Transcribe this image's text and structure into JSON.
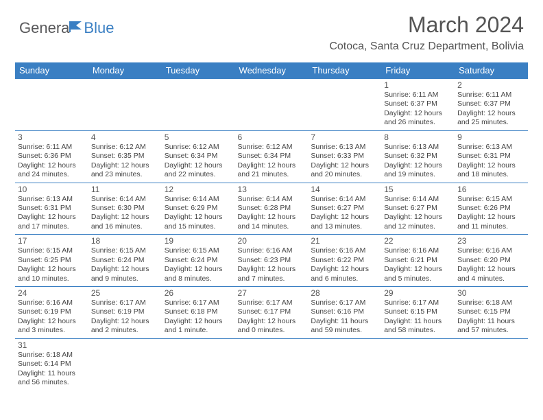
{
  "logo": {
    "general": "Genera",
    "blue": "Blue"
  },
  "header": {
    "title": "March 2024",
    "location": "Cotoca, Santa Cruz Department, Bolivia"
  },
  "colors": {
    "header_bg": "#3a7fc3",
    "header_text": "#ffffff",
    "border": "#3a7fc3",
    "text": "#444444",
    "title": "#555555"
  },
  "weekdays": [
    "Sunday",
    "Monday",
    "Tuesday",
    "Wednesday",
    "Thursday",
    "Friday",
    "Saturday"
  ],
  "weeks": [
    [
      null,
      null,
      null,
      null,
      null,
      {
        "day": "1",
        "sunrise": "Sunrise: 6:11 AM",
        "sunset": "Sunset: 6:37 PM",
        "daylight": "Daylight: 12 hours and 26 minutes."
      },
      {
        "day": "2",
        "sunrise": "Sunrise: 6:11 AM",
        "sunset": "Sunset: 6:37 PM",
        "daylight": "Daylight: 12 hours and 25 minutes."
      }
    ],
    [
      {
        "day": "3",
        "sunrise": "Sunrise: 6:11 AM",
        "sunset": "Sunset: 6:36 PM",
        "daylight": "Daylight: 12 hours and 24 minutes."
      },
      {
        "day": "4",
        "sunrise": "Sunrise: 6:12 AM",
        "sunset": "Sunset: 6:35 PM",
        "daylight": "Daylight: 12 hours and 23 minutes."
      },
      {
        "day": "5",
        "sunrise": "Sunrise: 6:12 AM",
        "sunset": "Sunset: 6:34 PM",
        "daylight": "Daylight: 12 hours and 22 minutes."
      },
      {
        "day": "6",
        "sunrise": "Sunrise: 6:12 AM",
        "sunset": "Sunset: 6:34 PM",
        "daylight": "Daylight: 12 hours and 21 minutes."
      },
      {
        "day": "7",
        "sunrise": "Sunrise: 6:13 AM",
        "sunset": "Sunset: 6:33 PM",
        "daylight": "Daylight: 12 hours and 20 minutes."
      },
      {
        "day": "8",
        "sunrise": "Sunrise: 6:13 AM",
        "sunset": "Sunset: 6:32 PM",
        "daylight": "Daylight: 12 hours and 19 minutes."
      },
      {
        "day": "9",
        "sunrise": "Sunrise: 6:13 AM",
        "sunset": "Sunset: 6:31 PM",
        "daylight": "Daylight: 12 hours and 18 minutes."
      }
    ],
    [
      {
        "day": "10",
        "sunrise": "Sunrise: 6:13 AM",
        "sunset": "Sunset: 6:31 PM",
        "daylight": "Daylight: 12 hours and 17 minutes."
      },
      {
        "day": "11",
        "sunrise": "Sunrise: 6:14 AM",
        "sunset": "Sunset: 6:30 PM",
        "daylight": "Daylight: 12 hours and 16 minutes."
      },
      {
        "day": "12",
        "sunrise": "Sunrise: 6:14 AM",
        "sunset": "Sunset: 6:29 PM",
        "daylight": "Daylight: 12 hours and 15 minutes."
      },
      {
        "day": "13",
        "sunrise": "Sunrise: 6:14 AM",
        "sunset": "Sunset: 6:28 PM",
        "daylight": "Daylight: 12 hours and 14 minutes."
      },
      {
        "day": "14",
        "sunrise": "Sunrise: 6:14 AM",
        "sunset": "Sunset: 6:27 PM",
        "daylight": "Daylight: 12 hours and 13 minutes."
      },
      {
        "day": "15",
        "sunrise": "Sunrise: 6:14 AM",
        "sunset": "Sunset: 6:27 PM",
        "daylight": "Daylight: 12 hours and 12 minutes."
      },
      {
        "day": "16",
        "sunrise": "Sunrise: 6:15 AM",
        "sunset": "Sunset: 6:26 PM",
        "daylight": "Daylight: 12 hours and 11 minutes."
      }
    ],
    [
      {
        "day": "17",
        "sunrise": "Sunrise: 6:15 AM",
        "sunset": "Sunset: 6:25 PM",
        "daylight": "Daylight: 12 hours and 10 minutes."
      },
      {
        "day": "18",
        "sunrise": "Sunrise: 6:15 AM",
        "sunset": "Sunset: 6:24 PM",
        "daylight": "Daylight: 12 hours and 9 minutes."
      },
      {
        "day": "19",
        "sunrise": "Sunrise: 6:15 AM",
        "sunset": "Sunset: 6:24 PM",
        "daylight": "Daylight: 12 hours and 8 minutes."
      },
      {
        "day": "20",
        "sunrise": "Sunrise: 6:16 AM",
        "sunset": "Sunset: 6:23 PM",
        "daylight": "Daylight: 12 hours and 7 minutes."
      },
      {
        "day": "21",
        "sunrise": "Sunrise: 6:16 AM",
        "sunset": "Sunset: 6:22 PM",
        "daylight": "Daylight: 12 hours and 6 minutes."
      },
      {
        "day": "22",
        "sunrise": "Sunrise: 6:16 AM",
        "sunset": "Sunset: 6:21 PM",
        "daylight": "Daylight: 12 hours and 5 minutes."
      },
      {
        "day": "23",
        "sunrise": "Sunrise: 6:16 AM",
        "sunset": "Sunset: 6:20 PM",
        "daylight": "Daylight: 12 hours and 4 minutes."
      }
    ],
    [
      {
        "day": "24",
        "sunrise": "Sunrise: 6:16 AM",
        "sunset": "Sunset: 6:19 PM",
        "daylight": "Daylight: 12 hours and 3 minutes."
      },
      {
        "day": "25",
        "sunrise": "Sunrise: 6:17 AM",
        "sunset": "Sunset: 6:19 PM",
        "daylight": "Daylight: 12 hours and 2 minutes."
      },
      {
        "day": "26",
        "sunrise": "Sunrise: 6:17 AM",
        "sunset": "Sunset: 6:18 PM",
        "daylight": "Daylight: 12 hours and 1 minute."
      },
      {
        "day": "27",
        "sunrise": "Sunrise: 6:17 AM",
        "sunset": "Sunset: 6:17 PM",
        "daylight": "Daylight: 12 hours and 0 minutes."
      },
      {
        "day": "28",
        "sunrise": "Sunrise: 6:17 AM",
        "sunset": "Sunset: 6:16 PM",
        "daylight": "Daylight: 11 hours and 59 minutes."
      },
      {
        "day": "29",
        "sunrise": "Sunrise: 6:17 AM",
        "sunset": "Sunset: 6:15 PM",
        "daylight": "Daylight: 11 hours and 58 minutes."
      },
      {
        "day": "30",
        "sunrise": "Sunrise: 6:18 AM",
        "sunset": "Sunset: 6:15 PM",
        "daylight": "Daylight: 11 hours and 57 minutes."
      }
    ],
    [
      {
        "day": "31",
        "sunrise": "Sunrise: 6:18 AM",
        "sunset": "Sunset: 6:14 PM",
        "daylight": "Daylight: 11 hours and 56 minutes."
      },
      null,
      null,
      null,
      null,
      null,
      null
    ]
  ]
}
